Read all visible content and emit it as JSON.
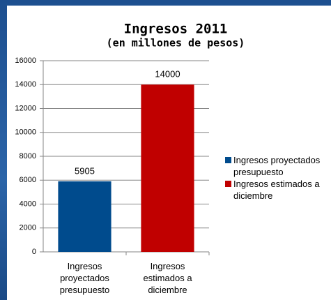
{
  "chart_data": {
    "type": "bar",
    "title": "Ingresos 2011",
    "subtitle": "(en millones de pesos)",
    "categories": [
      "Ingresos proyectados presupuesto",
      "Ingresos estimados a diciembre"
    ],
    "values": [
      5905,
      14000
    ],
    "colors": [
      "#004b8d",
      "#c00000"
    ],
    "ylim": [
      0,
      16000
    ],
    "yticks": [
      0,
      2000,
      4000,
      6000,
      8000,
      10000,
      12000,
      14000,
      16000
    ],
    "grid": true,
    "legend": "right"
  }
}
